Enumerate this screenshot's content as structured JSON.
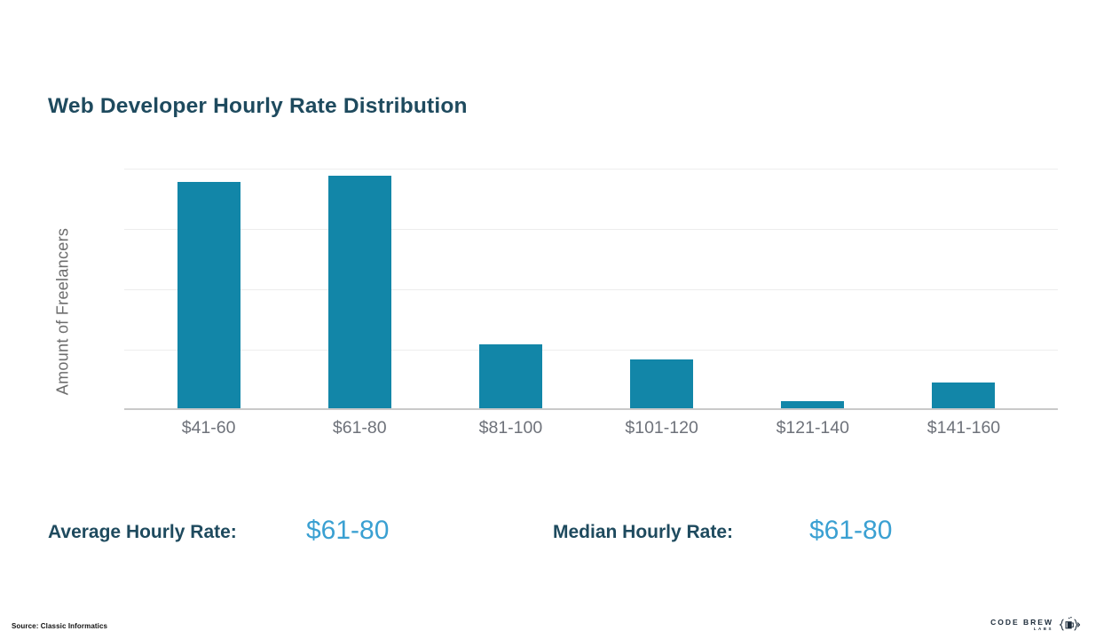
{
  "title": {
    "text": "Web Developer Hourly Rate Distribution",
    "color": "#1e4a5e"
  },
  "chart_data": {
    "type": "bar",
    "title": "Web Developer Hourly Rate Distribution",
    "categories": [
      "$41-60",
      "$61-80",
      "$81-100",
      "$101-120",
      "$121-140",
      "$141-160"
    ],
    "values": [
      93.8,
      96.3,
      26.5,
      20.2,
      3.1,
      10.7
    ],
    "xlabel": "",
    "ylabel": "Amount of Freelancers",
    "ylim": [
      0,
      100
    ],
    "y_tick_labels_visible": false,
    "grid": "horizontal",
    "gridlines_at": [
      0,
      25,
      50,
      75,
      100
    ],
    "legend": "none",
    "bar_color": "#1286a8",
    "gridline_color": "#ededed",
    "axis_line_color": "#c9c9c9",
    "x_label_color": "#6e727a",
    "note": "values are bar heights as percent of full plot height; y axis has no numeric tick labels"
  },
  "stats": {
    "average_label": "Average Hourly Rate:",
    "average_value": "$61-80",
    "median_label": "Median Hourly Rate:",
    "median_value": "$61-80",
    "label_color": "#1e4a5e",
    "value_color": "#3aa0d2"
  },
  "footer": {
    "source": "Source: Classic Informatics",
    "logo_text": "CODE BREW",
    "logo_subtext": "LABS"
  }
}
